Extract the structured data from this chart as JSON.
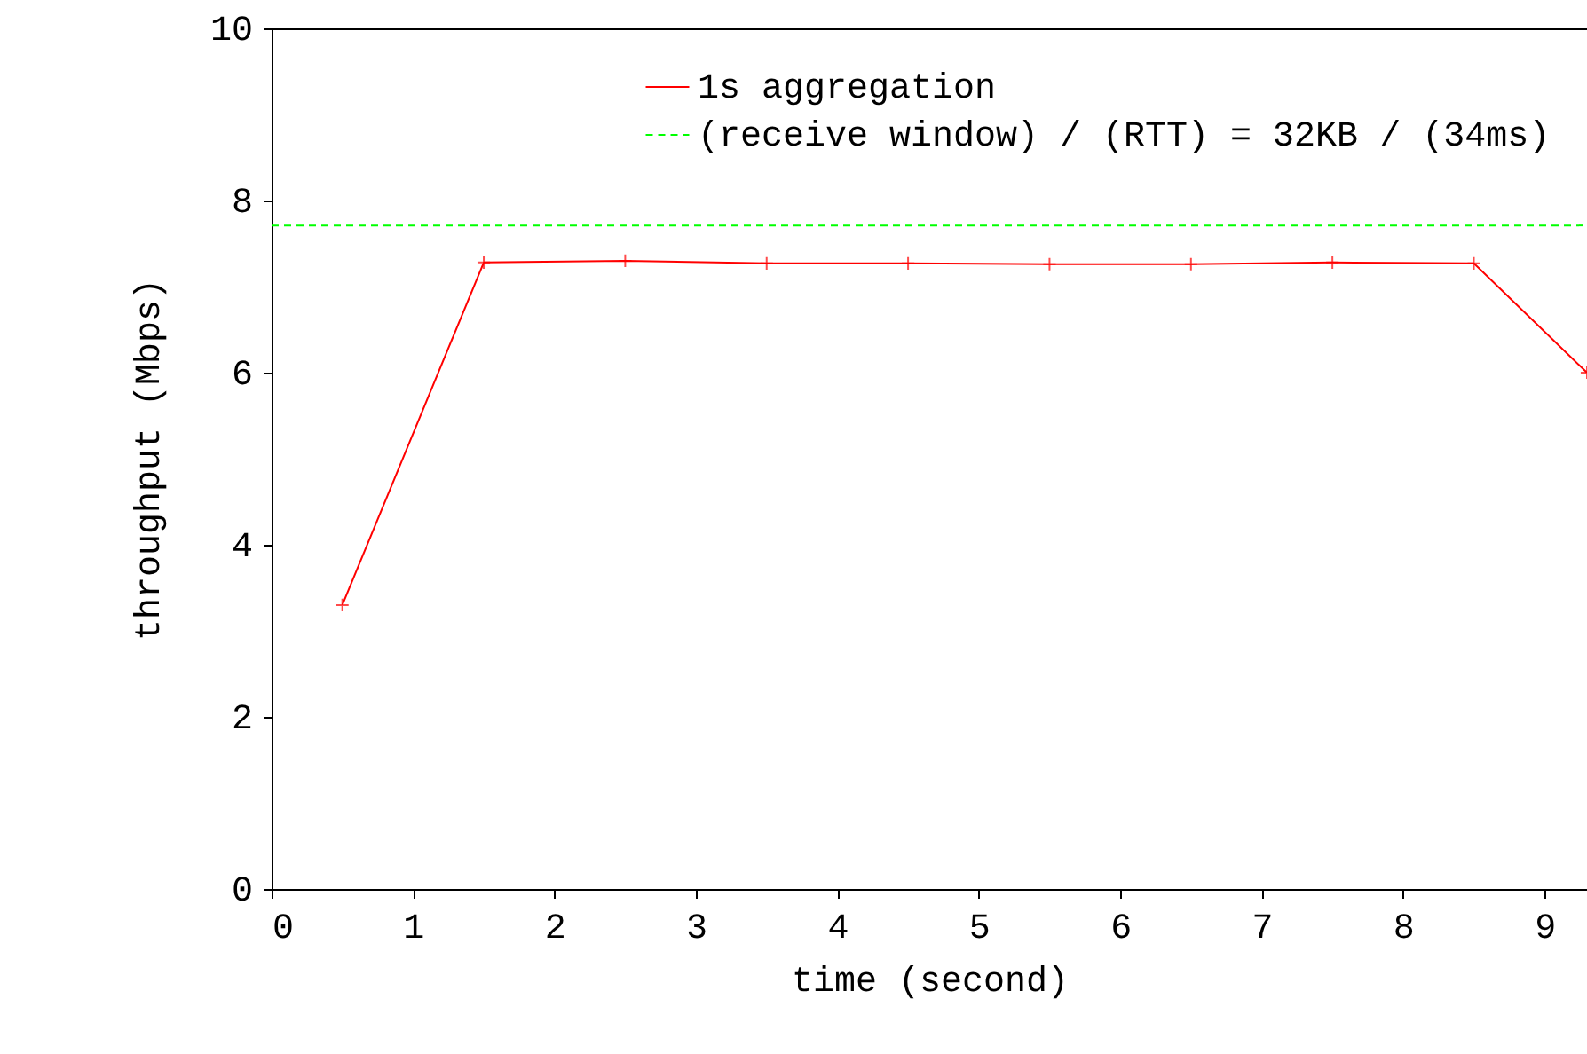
{
  "chart_data": {
    "type": "line",
    "xlabel": "time (second)",
    "ylabel": "throughput (Mbps)",
    "xlim": [
      0,
      9.3
    ],
    "xticks": [
      0,
      1,
      2,
      3,
      4,
      5,
      6,
      7,
      8,
      9
    ],
    "ylim": [
      0,
      10
    ],
    "yticks": [
      0,
      2,
      4,
      6,
      8,
      10
    ],
    "grid": false,
    "legend": "top right",
    "series": [
      {
        "name": "1s aggregation",
        "color": "#ff0000",
        "marker": "cross",
        "line_style": "solid",
        "x": [
          0.5,
          1.5,
          2.5,
          3.5,
          4.5,
          5.5,
          6.5,
          7.5,
          8.5,
          9.3
        ],
        "values": [
          3.3,
          7.28,
          7.3,
          7.27,
          7.27,
          7.26,
          7.26,
          7.28,
          7.27,
          6.0
        ]
      },
      {
        "name": "(receive window) / (RTT) = 32KB / (34ms)",
        "color": "#00ff00",
        "marker": "none",
        "line_style": "dashed",
        "x": [
          0,
          9.3
        ],
        "values": [
          7.71,
          7.71
        ]
      }
    ]
  }
}
